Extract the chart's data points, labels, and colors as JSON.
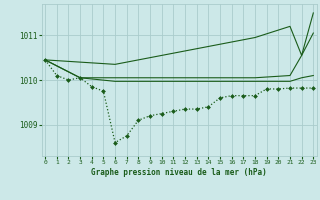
{
  "title": "Graphe pression niveau de la mer (hPa)",
  "bg_color": "#cce8e8",
  "grid_color": "#aacccc",
  "line_color": "#1a5c1a",
  "x_ticks": [
    0,
    1,
    2,
    3,
    4,
    5,
    6,
    7,
    8,
    9,
    10,
    11,
    12,
    13,
    14,
    15,
    16,
    17,
    18,
    19,
    20,
    21,
    22,
    23
  ],
  "y_ticks": [
    1009,
    1010,
    1011
  ],
  "ylim": [
    1008.3,
    1011.7
  ],
  "xlim": [
    -0.3,
    23.3
  ],
  "series": [
    {
      "x": [
        0,
        1,
        2,
        3,
        4,
        5,
        6,
        7,
        8,
        9,
        10,
        11,
        12,
        13,
        14,
        15,
        16,
        17,
        18,
        19,
        20,
        21,
        22,
        23
      ],
      "y": [
        1010.45,
        1010.1,
        1010.0,
        1010.05,
        1009.85,
        1009.75,
        1008.6,
        1008.75,
        1009.1,
        1009.2,
        1009.25,
        1009.3,
        1009.35,
        1009.35,
        1009.4,
        1009.6,
        1009.65,
        1009.65,
        1009.65,
        1009.8,
        1009.8,
        1009.82,
        1009.82,
        1009.82
      ],
      "marker": "D",
      "markersize": 2.0,
      "linewidth": 0.9,
      "linestyle": ":"
    },
    {
      "x": [
        0,
        3,
        6,
        9,
        12,
        15,
        18,
        21,
        22,
        23
      ],
      "y": [
        1010.45,
        1010.05,
        1010.05,
        1010.05,
        1010.05,
        1010.05,
        1010.05,
        1010.1,
        1010.55,
        1011.05
      ],
      "marker": null,
      "markersize": 0,
      "linewidth": 0.8,
      "linestyle": "-"
    },
    {
      "x": [
        0,
        3,
        6,
        9,
        12,
        15,
        18,
        21,
        22,
        23
      ],
      "y": [
        1010.45,
        1010.05,
        1009.97,
        1009.97,
        1009.97,
        1009.97,
        1009.97,
        1009.97,
        1010.05,
        1010.1
      ],
      "marker": null,
      "markersize": 0,
      "linewidth": 0.8,
      "linestyle": "-"
    },
    {
      "x": [
        0,
        6,
        9,
        12,
        15,
        18,
        21,
        22,
        23
      ],
      "y": [
        1010.45,
        1010.35,
        1010.5,
        1010.65,
        1010.8,
        1010.95,
        1011.2,
        1010.55,
        1011.5
      ],
      "marker": null,
      "markersize": 0,
      "linewidth": 0.8,
      "linestyle": "-"
    }
  ]
}
